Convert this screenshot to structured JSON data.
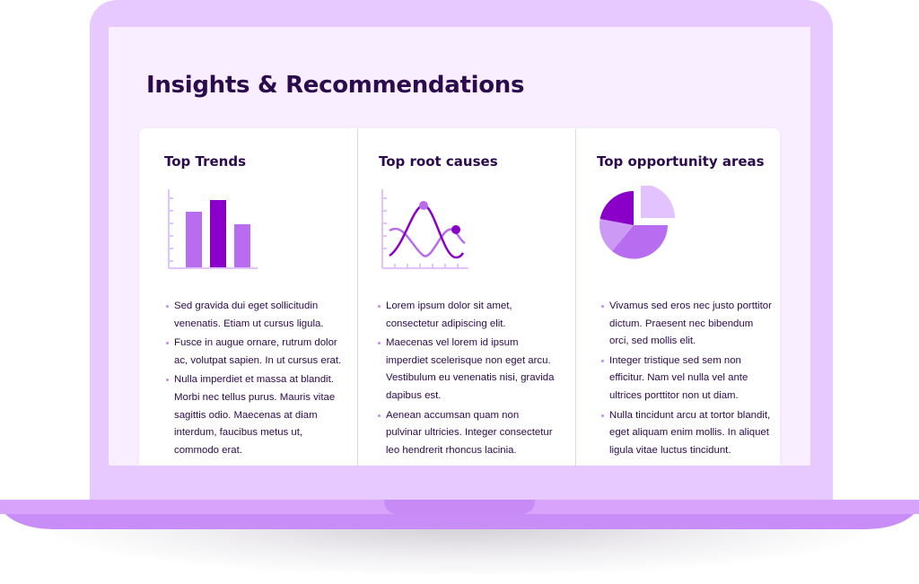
{
  "page": {
    "title": "Insights & Recommendations"
  },
  "columns": [
    {
      "title": "Top Trends",
      "illustration": "bar-chart-icon",
      "bullets": [
        "Sed gravida dui eget sollicitudin venenatis. Etiam ut cursus ligula.",
        "Fusce in augue ornare, rutrum dolor ac, volutpat sapien. In ut cursus erat.",
        "Nulla imperdiet et massa at blandit. Morbi nec tellus purus. Mauris vitae sagittis odio. Maecenas at diam interdum, faucibus metus ut, commodo erat."
      ]
    },
    {
      "title": "Top root causes",
      "illustration": "wave-chart-icon",
      "bullets": [
        "Lorem ipsum dolor sit amet, consectetur adipiscing elit.",
        "Maecenas vel lorem id ipsum imperdiet scelerisque non eget arcu. Vestibulum eu venenatis nisi, gravida dapibus est.",
        "Aenean accumsan quam non pulvinar ultricies. Integer consectetur leo hendrerit rhoncus lacinia."
      ]
    },
    {
      "title": "Top opportunity areas",
      "illustration": "pie-chart-icon",
      "bullets": [
        "Vivamus sed eros nec justo porttitor dictum. Praesent nec bibendum orci, sed mollis elit.",
        "Integer tristique sed sem non efficitur. Nam vel nulla vel ante ultrices porttitor non ut diam.",
        "Nulla tincidunt arcu at tortor blandit, eget aliquam enim mollis. In aliquet ligula vitae luctus tincidunt."
      ]
    }
  ],
  "colors": {
    "laptop_lid": "#e8c9ff",
    "laptop_base": "#c98df7",
    "screen_bg": "#f8eeff",
    "title_text": "#2b0a4d",
    "accent_dark": "#8a00c8",
    "accent_mid": "#b86cf0",
    "accent_light": "#e2c2ff"
  }
}
